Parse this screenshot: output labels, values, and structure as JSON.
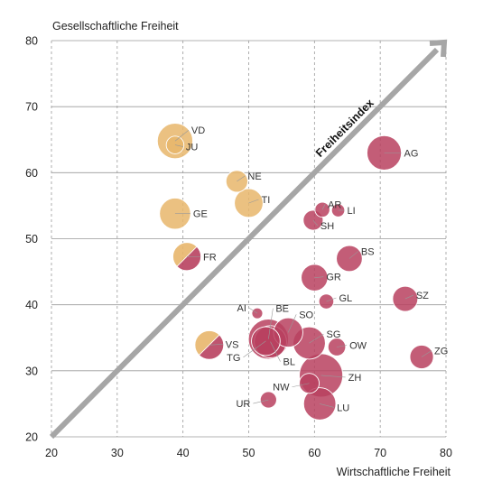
{
  "chart_data": {
    "type": "scatter",
    "xlabel": "Wirtschaftliche Freiheit",
    "ylabel": "Gesellschaftliche Freiheit",
    "xlim": [
      20,
      80
    ],
    "ylim": [
      20,
      80
    ],
    "xticks": [
      "20",
      "30",
      "40",
      "50",
      "60",
      "70",
      "80"
    ],
    "yticks": [
      "20",
      "30",
      "40",
      "50",
      "60",
      "70",
      "80"
    ],
    "grid": "dashed vertical, solid horizontal",
    "arrow_label": "Freiheitsindex",
    "colors": {
      "social": "#e8b66b",
      "economic": "#b8415f",
      "arrow": "#a6a6a6",
      "grid": "#9a9a9a"
    },
    "points": [
      {
        "label": "VD",
        "x": 38.8,
        "y": 64.8,
        "size": 3.0,
        "color": "#e8b66b"
      },
      {
        "label": "JU",
        "x": 38.8,
        "y": 64.2,
        "size": 0.5,
        "color": "#e8b66b"
      },
      {
        "label": "NE",
        "x": 48.2,
        "y": 58.7,
        "size": 0.9,
        "color": "#e8b66b"
      },
      {
        "label": "TI",
        "x": 50.0,
        "y": 55.4,
        "size": 1.8,
        "color": "#e8b66b"
      },
      {
        "label": "GE",
        "x": 38.8,
        "y": 53.8,
        "size": 2.2,
        "color": "#e8b66b"
      },
      {
        "label": "FR",
        "x": 40.6,
        "y": 47.3,
        "size": 1.7,
        "color": "#b8415f",
        "color2": "#e8b66b"
      },
      {
        "label": "VS",
        "x": 44.0,
        "y": 33.9,
        "size": 1.8,
        "color": "#b8415f",
        "color2": "#e8b66b"
      },
      {
        "label": "AG",
        "x": 70.6,
        "y": 63.0,
        "size": 2.8,
        "color": "#b8415f"
      },
      {
        "label": "AR",
        "x": 61.2,
        "y": 54.4,
        "size": 0.3,
        "color": "#b8415f"
      },
      {
        "label": "LI",
        "x": 63.6,
        "y": 54.3,
        "size": 0.2,
        "color": "#b8415f"
      },
      {
        "label": "SH",
        "x": 59.8,
        "y": 52.8,
        "size": 0.7,
        "color": "#b8415f"
      },
      {
        "label": "BS",
        "x": 65.3,
        "y": 47.0,
        "size": 1.4,
        "color": "#b8415f"
      },
      {
        "label": "GR",
        "x": 60.0,
        "y": 44.1,
        "size": 1.5,
        "color": "#b8415f"
      },
      {
        "label": "GL",
        "x": 61.8,
        "y": 40.5,
        "size": 0.3,
        "color": "#b8415f"
      },
      {
        "label": "SZ",
        "x": 73.8,
        "y": 40.9,
        "size": 1.3,
        "color": "#b8415f"
      },
      {
        "label": "AI",
        "x": 51.3,
        "y": 38.7,
        "size": 0.1,
        "color": "#b8415f"
      },
      {
        "label": "BE",
        "x": 53.0,
        "y": 34.8,
        "size": 4.0,
        "color": "#b8415f"
      },
      {
        "label": "SO",
        "x": 56.0,
        "y": 35.8,
        "size": 1.9,
        "color": "#b8415f"
      },
      {
        "label": "BL",
        "x": 53.3,
        "y": 34.4,
        "size": 2.4,
        "color": "#b8415f"
      },
      {
        "label": "TG",
        "x": 52.6,
        "y": 34.5,
        "size": 1.8,
        "color": "#b8415f"
      },
      {
        "label": "SG",
        "x": 59.2,
        "y": 34.2,
        "size": 2.4,
        "color": "#b8415f"
      },
      {
        "label": "OW",
        "x": 63.4,
        "y": 33.6,
        "size": 0.5,
        "color": "#b8415f"
      },
      {
        "label": "ZG",
        "x": 76.3,
        "y": 32.1,
        "size": 1.1,
        "color": "#b8415f"
      },
      {
        "label": "ZH",
        "x": 61.0,
        "y": 29.3,
        "size": 4.8,
        "color": "#b8415f"
      },
      {
        "label": "NW",
        "x": 59.2,
        "y": 28.1,
        "size": 0.7,
        "color": "#b8415f"
      },
      {
        "label": "LU",
        "x": 60.8,
        "y": 25.0,
        "size": 2.4,
        "color": "#b8415f"
      },
      {
        "label": "UR",
        "x": 53.0,
        "y": 25.6,
        "size": 0.4,
        "color": "#b8415f"
      }
    ]
  }
}
